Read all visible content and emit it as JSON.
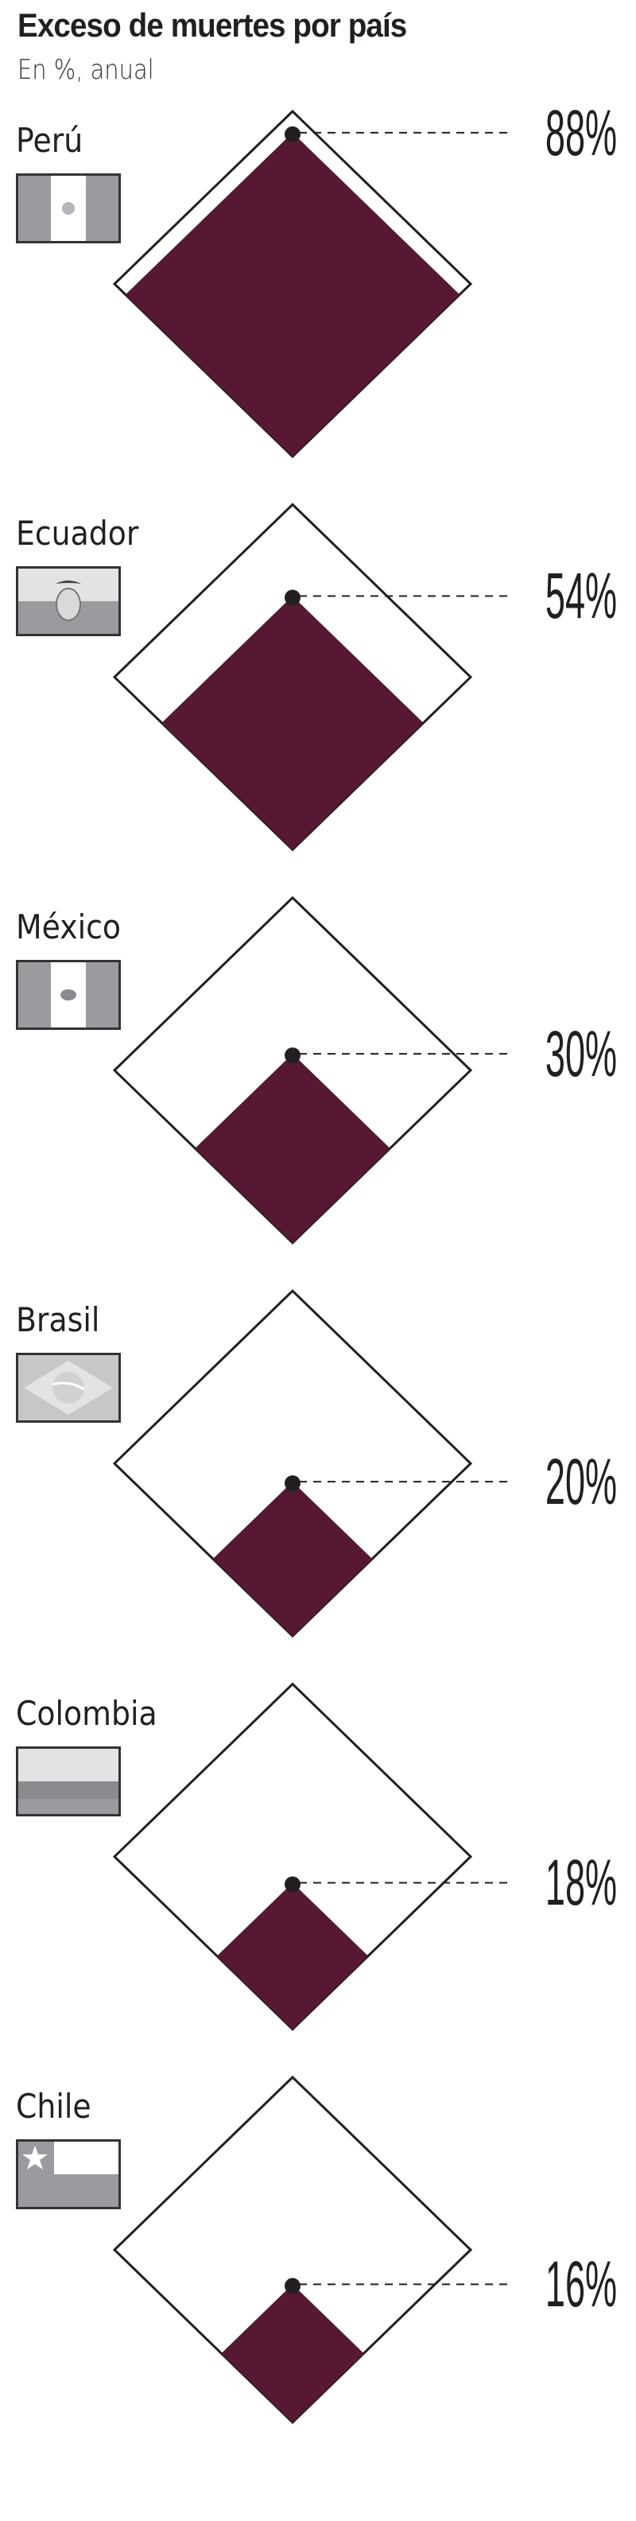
{
  "title": "Exceso de muertes por país",
  "subtitle": "En %, anual",
  "colors": {
    "fill": "#561832",
    "outline": "#231f20",
    "flag_dark": "#9a9b9f",
    "flag_light": "#e2e3e5",
    "flag_mid": "#c6c7c9"
  },
  "chart_data": {
    "type": "area-proportional diamonds",
    "title": "Exceso de muertes por país",
    "subtitle": "En %, anual",
    "unit": "%",
    "scale_max": 100,
    "categories": [
      "Perú",
      "Ecuador",
      "México",
      "Brasil",
      "Colombia",
      "Chile"
    ],
    "values": [
      88,
      54,
      30,
      20,
      18,
      16
    ],
    "labels": [
      "88%",
      "54%",
      "30%",
      "20%",
      "18%",
      "16%"
    ],
    "flags": [
      "peru-flag-icon",
      "ecuador-flag-icon",
      "mexico-flag-icon",
      "brazil-flag-icon",
      "colombia-flag-icon",
      "chile-flag-icon"
    ]
  }
}
